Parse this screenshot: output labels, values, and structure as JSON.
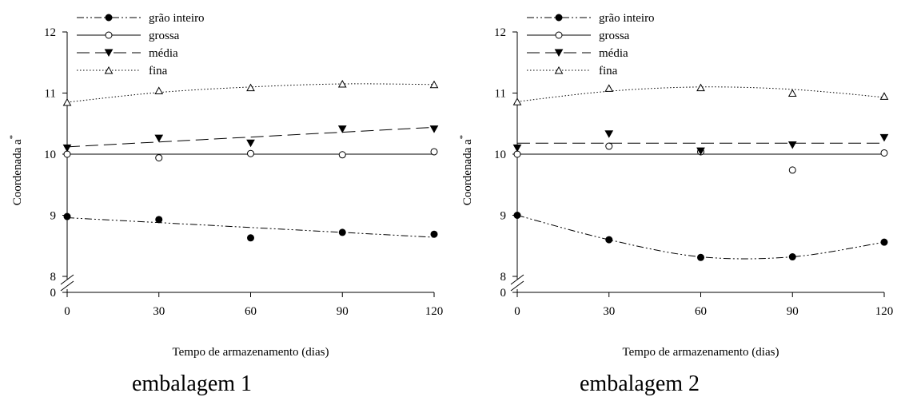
{
  "chart_data": [
    {
      "type": "line",
      "caption": "embalagem 1",
      "xlabel": "Tempo de armazenamento (dias)",
      "ylabel": "Coordenada a",
      "ylabel_superscript": "*",
      "x": [
        0,
        30,
        60,
        90,
        120
      ],
      "xlim": [
        0,
        120
      ],
      "ylim": [
        8,
        12
      ],
      "y_break": true,
      "y_zero_label": "0",
      "xticks": [
        "0",
        "30",
        "60",
        "90",
        "120"
      ],
      "yticks": [
        "8",
        "9",
        "10",
        "11",
        "12"
      ],
      "legend_position": "top-left",
      "grid": false,
      "series": [
        {
          "name": "grão inteiro",
          "marker": "filled-circle",
          "line": "dash-dot-dot",
          "values": [
            8.98,
            8.93,
            8.63,
            8.72,
            8.69
          ],
          "fit": [
            8.96,
            8.88,
            8.8,
            8.72,
            8.64
          ]
        },
        {
          "name": "grossa",
          "marker": "open-circle",
          "line": "solid",
          "values": [
            10.0,
            9.94,
            10.01,
            9.99,
            10.04
          ],
          "fit": [
            10.0,
            10.0,
            10.0,
            10.0,
            10.0
          ]
        },
        {
          "name": "média",
          "marker": "filled-down-triangle",
          "line": "dashed",
          "values": [
            10.1,
            10.26,
            10.18,
            10.41,
            10.41
          ],
          "fit": [
            10.12,
            10.2,
            10.28,
            10.36,
            10.44
          ]
        },
        {
          "name": "fina",
          "marker": "open-up-triangle",
          "line": "dotted",
          "values": [
            10.85,
            11.04,
            11.09,
            11.15,
            11.14
          ],
          "fit": [
            10.85,
            11.01,
            11.1,
            11.15,
            11.14
          ]
        }
      ]
    },
    {
      "type": "line",
      "caption": "embalagem 2",
      "xlabel": "Tempo de armazenamento (dias)",
      "ylabel": "Coordenada a",
      "ylabel_superscript": "*",
      "x": [
        0,
        30,
        60,
        90,
        120
      ],
      "xlim": [
        0,
        120
      ],
      "ylim": [
        8,
        12
      ],
      "y_break": true,
      "y_zero_label": "0",
      "xticks": [
        "0",
        "30",
        "60",
        "90",
        "120"
      ],
      "yticks": [
        "8",
        "9",
        "10",
        "11",
        "12"
      ],
      "legend_position": "top-left",
      "grid": false,
      "series": [
        {
          "name": "grão inteiro",
          "marker": "filled-circle",
          "line": "dash-dot-dot",
          "values": [
            9.0,
            8.6,
            8.31,
            8.32,
            8.56
          ],
          "fit": [
            9.0,
            8.6,
            8.32,
            8.32,
            8.56
          ]
        },
        {
          "name": "grossa",
          "marker": "open-circle",
          "line": "solid",
          "values": [
            10.0,
            10.13,
            10.04,
            9.74,
            10.02
          ],
          "fit": [
            10.0,
            10.0,
            10.0,
            10.0,
            10.0
          ]
        },
        {
          "name": "média",
          "marker": "filled-down-triangle",
          "line": "dashed",
          "values": [
            10.1,
            10.33,
            10.05,
            10.15,
            10.27
          ],
          "fit": [
            10.18,
            10.18,
            10.18,
            10.18,
            10.18
          ]
        },
        {
          "name": "fina",
          "marker": "open-up-triangle",
          "line": "dotted",
          "values": [
            10.86,
            11.08,
            11.09,
            11.0,
            10.95
          ],
          "fit": [
            10.86,
            11.03,
            11.1,
            11.06,
            10.93
          ]
        }
      ]
    }
  ]
}
